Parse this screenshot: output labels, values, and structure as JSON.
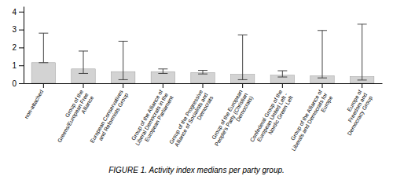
{
  "chart_data": {
    "type": "bar",
    "title": "FIGURE 1. Activity index medians per party group.",
    "categories": [
      "non-attached",
      "Group of the\nGreens/European Free\nAlliance",
      "European Conservatives\nand Reformists Group",
      "Group of the Alliance of\nLiberal Democrats in the\nEuropean Parliament",
      "Group of the Progressive\nAlliance of Socialists and\nDemocrats",
      "Group of the European\nPeople's Party (Christian\nDemocrats)",
      "Confederal Group of the\nEuropean United Left -\nNordic Green Left",
      "Group of the Alliance of\nLiberals and Democrats for\nEurope",
      "Europe of\nFreedom and\nDemocracy Group"
    ],
    "values": [
      1.15,
      0.8,
      0.65,
      0.65,
      0.6,
      0.5,
      0.45,
      0.42,
      0.38
    ],
    "error_low": [
      1.15,
      0.55,
      0.2,
      0.55,
      0.52,
      0.2,
      0.35,
      0.3,
      0.18
    ],
    "error_high": [
      2.8,
      1.8,
      2.35,
      0.8,
      0.72,
      2.7,
      0.7,
      2.95,
      3.3
    ],
    "color": "#d3d3d3",
    "ylim": [
      0,
      4.3
    ],
    "yticks": [
      0,
      1,
      2,
      3,
      4
    ],
    "grid": false
  }
}
